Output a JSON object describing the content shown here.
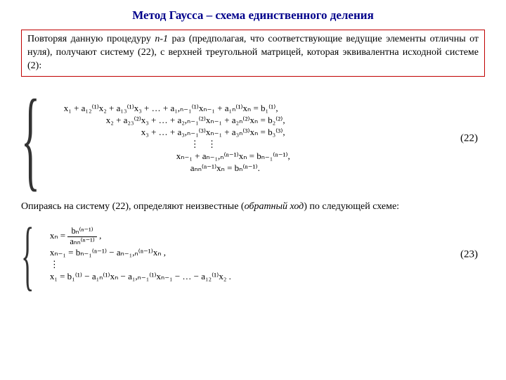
{
  "title": "Метод Гаусса – схема единственного деления",
  "intro": {
    "prefix": "Повторяя данную процедуру ",
    "nminus1": "n-1",
    "suffix": " раз (предполагая, что соответствующие ведущие элементы отличны от нуля), получают систему (22), с верхней треугольной матрицей, которая эквивалентна исходной системе (2):"
  },
  "eq22": {
    "lines": [
      "x₁ + a₁₂⁽¹⁾x₂ + a₁₃⁽¹⁾x₃ + … + a₁,ₙ₋₁⁽¹⁾xₙ₋₁ + a₁ₙ⁽¹⁾xₙ = b₁⁽¹⁾,",
      "x₂ + a₂₃⁽²⁾x₃ + … + a₂,ₙ₋₁⁽²⁾xₙ₋₁ + a₂ₙ⁽²⁾xₙ = b₂⁽²⁾,",
      "x₃ + … + a₃,ₙ₋₁⁽³⁾xₙ₋₁ + a₃ₙ⁽³⁾xₙ = b₃⁽³⁾,",
      "⋮        ⋮",
      "xₙ₋₁ + aₙ₋₁,ₙ⁽ⁿ⁻¹⁾xₙ = bₙ₋₁⁽ⁿ⁻¹⁾,",
      "aₙₙ⁽ⁿ⁻¹⁾xₙ = bₙ⁽ⁿ⁻¹⁾."
    ],
    "label": "(22)"
  },
  "midtext": {
    "prefix": "Опираясь на систему (22), определяют неизвестные (",
    "ital": "обратный ход",
    "suffix": ") по следующей схеме:"
  },
  "eq23": {
    "frac_num": "bₙ⁽ⁿ⁻¹⁾",
    "frac_den": "aₙₙ⁽ⁿ⁻¹⁾",
    "xn_prefix": "xₙ = ",
    "xn_suffix": " ,",
    "line2": "xₙ₋₁ = bₙ₋₁⁽ⁿ⁻¹⁾ − aₙ₋₁,ₙ⁽ⁿ⁻¹⁾xₙ ,",
    "line3": "⋮",
    "line4": "x₁ = b₁⁽¹⁾ − a₁ₙ⁽¹⁾xₙ − a₁,ₙ₋₁⁽¹⁾xₙ₋₁ − … − a₁₂⁽¹⁾x₂ .",
    "label": "(23)"
  },
  "colors": {
    "title": "#00008b",
    "box_border": "#c00000",
    "text": "#000000",
    "bg": "#ffffff"
  },
  "fonts": {
    "family": "Times New Roman",
    "title_size_pt": 13,
    "body_size_pt": 10.5
  }
}
